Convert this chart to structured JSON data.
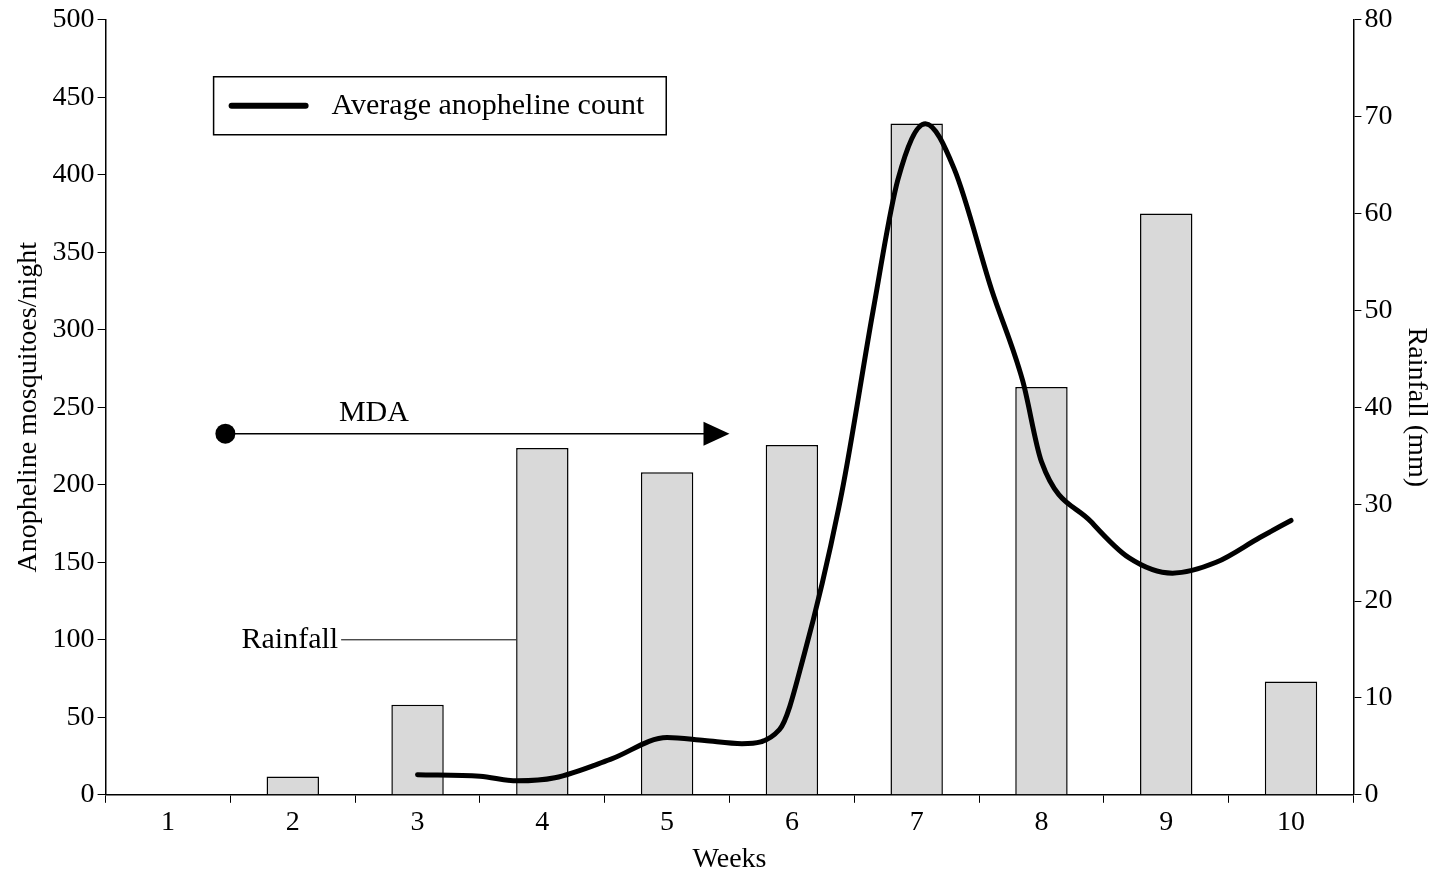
{
  "chart_data": {
    "type": "bar",
    "xlabel": "Weeks",
    "ylabel": "Anopheline mosquitoes/night",
    "y2label": "Rainfall (mm)",
    "x": [
      1,
      2,
      3,
      4,
      5,
      6,
      7,
      8,
      9,
      10
    ],
    "xlim": [
      0.5,
      10.5
    ],
    "xticks": [
      1,
      2,
      3,
      4,
      5,
      6,
      7,
      8,
      9,
      10
    ],
    "ylim": [
      0,
      500
    ],
    "yticks": [
      0,
      50,
      100,
      150,
      200,
      250,
      300,
      350,
      400,
      450,
      500
    ],
    "y2lim": [
      0,
      80
    ],
    "y2ticks": [
      0,
      10,
      20,
      30,
      40,
      50,
      60,
      70,
      80
    ],
    "legend": "top left",
    "grid": false,
    "series": [
      {
        "axis": "y2",
        "color": "#d9d9d9",
        "values": [
          0,
          1.9,
          9.3,
          35.8,
          33.3,
          36.1,
          69.3,
          42.1,
          60,
          11.7
        ]
      },
      {
        "type": "line",
        "name": "Average anopheline count",
        "color": "#000000",
        "marker": "none",
        "line_style": "solid",
        "x": [
          3,
          3.5,
          3.8,
          4.1,
          4.55,
          5,
          5.3,
          5.6,
          5.9,
          6.1,
          6.4,
          6.65,
          6.85,
          7.07,
          7.3,
          7.6,
          7.85,
          8,
          8.4,
          8.7,
          9.05,
          9.4,
          9.75,
          10
        ],
        "values": [
          13,
          12,
          9,
          11,
          23,
          37,
          35,
          33,
          42,
          91,
          195,
          312,
          397,
          433,
          404,
          326,
          267,
          215,
          176,
          153,
          143,
          150,
          166,
          177
        ]
      }
    ],
    "annotations": [
      "MDA",
      {
        "text": "Rainfall",
        "x": 3.79,
        "y": 100
      }
    ]
  }
}
